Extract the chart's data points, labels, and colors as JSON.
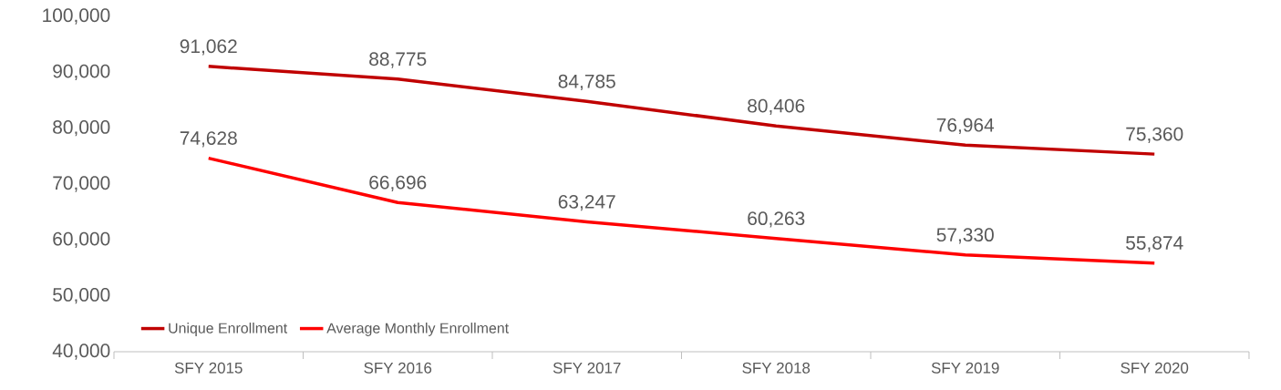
{
  "chart_data": {
    "type": "line",
    "categories": [
      "SFY 2015",
      "SFY 2016",
      "SFY 2017",
      "SFY 2018",
      "SFY 2019",
      "SFY 2020"
    ],
    "series": [
      {
        "name": "Unique Enrollment",
        "color": "#c00000",
        "values": [
          91062,
          88775,
          84785,
          80406,
          76964,
          75360
        ],
        "value_labels": [
          "91,062",
          "88,775",
          "84,785",
          "80,406",
          "76,964",
          "75,360"
        ]
      },
      {
        "name": "Average Monthly Enrollment",
        "color": "#ff0000",
        "values": [
          74628,
          66696,
          63247,
          60263,
          57330,
          55874
        ],
        "value_labels": [
          "74,628",
          "66,696",
          "63,247",
          "60,263",
          "57,330",
          "55,874"
        ]
      }
    ],
    "ylim": [
      40000,
      100000
    ],
    "yticks": [
      {
        "value": 40000,
        "label": "40,000"
      },
      {
        "value": 50000,
        "label": "50,000"
      },
      {
        "value": 60000,
        "label": "60,000"
      },
      {
        "value": 70000,
        "label": "70,000"
      },
      {
        "value": 80000,
        "label": "80,000"
      },
      {
        "value": 90000,
        "label": "90,000"
      },
      {
        "value": 100000,
        "label": "100,000"
      }
    ],
    "legend": "bottom left",
    "marker": "none",
    "line_style": "solid",
    "grid": false
  }
}
